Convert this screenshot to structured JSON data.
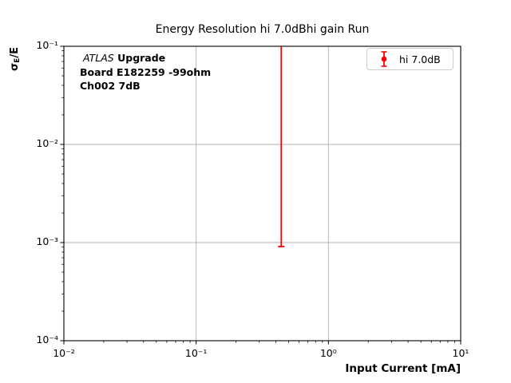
{
  "chart_data": {
    "type": "errorbar",
    "title": "Energy Resolution hi 7.0dBhi gain Run",
    "xlabel": "Input Current [mA]",
    "ylabel": "σE/E",
    "ylabel_parts": {
      "sigma": "σ",
      "subscript": "E",
      "rest": "/E"
    },
    "xscale": "log",
    "yscale": "log",
    "xlim": [
      0.01,
      10
    ],
    "ylim": [
      0.0001,
      0.1
    ],
    "x_tick_values": [
      0.01,
      0.1,
      1,
      10
    ],
    "x_tick_labels": [
      "10⁻²",
      "10⁻¹",
      "10⁰",
      "10¹"
    ],
    "y_tick_values": [
      0.1,
      0.01,
      0.001,
      0.0001
    ],
    "y_tick_labels": [
      "10⁻¹",
      "10⁻²",
      "10⁻³",
      "10⁻⁴"
    ],
    "grid": "major",
    "grid_color": "#b0b0b0",
    "spine_color": "#000000",
    "series": [
      {
        "name": "hi 7.0dB",
        "color": "#ff0000",
        "points": [
          {
            "x": 0.44,
            "y_err_low": 0.00091,
            "y_err_high": 0.1,
            "clipped_top": true
          }
        ]
      }
    ],
    "legend": {
      "position": "upper right",
      "entries": [
        {
          "label": "hi 7.0dB",
          "color": "#ff0000",
          "marker": "errorbar-dot"
        }
      ]
    },
    "annotation": {
      "line1_italic": "ATLAS",
      "line1_bold": "Upgrade",
      "line2": "Board E182259 -99ohm",
      "line3": "Ch002 7dB"
    }
  }
}
